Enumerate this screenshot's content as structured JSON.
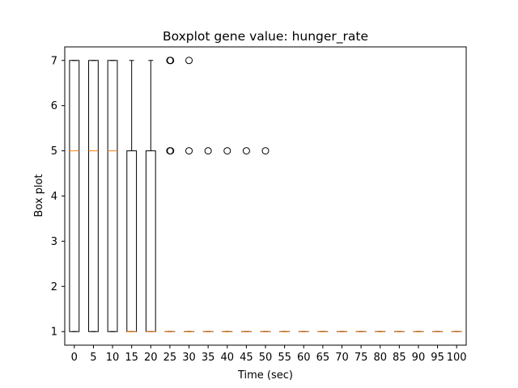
{
  "chart_data": {
    "type": "boxplot",
    "title": "Boxplot gene value: hunger_rate",
    "xlabel": "Time (sec)",
    "ylabel": "Box plot",
    "ylim": [
      0.7,
      7.3
    ],
    "yticks": [
      1,
      2,
      3,
      4,
      5,
      6,
      7
    ],
    "grid": false,
    "colors": {
      "box": "#000000",
      "median": "#ff7f0e",
      "whisker": "#000000",
      "flier": "#000000"
    },
    "boxes": [
      {
        "x": "0",
        "low": 1,
        "q1": 1,
        "median": 5,
        "q3": 7,
        "high": 7,
        "fliers": []
      },
      {
        "x": "5",
        "low": 1,
        "q1": 1,
        "median": 5,
        "q3": 7,
        "high": 7,
        "fliers": []
      },
      {
        "x": "10",
        "low": 1,
        "q1": 1,
        "median": 5,
        "q3": 7,
        "high": 7,
        "fliers": []
      },
      {
        "x": "15",
        "low": 1,
        "q1": 1,
        "median": 1,
        "q3": 5,
        "high": 7,
        "fliers": []
      },
      {
        "x": "20",
        "low": 1,
        "q1": 1,
        "median": 1,
        "q3": 5,
        "high": 7,
        "fliers": []
      },
      {
        "x": "25",
        "low": 1,
        "q1": 1,
        "median": 1,
        "q3": 1,
        "high": 1,
        "fliers": [
          5,
          7
        ]
      },
      {
        "x": "30",
        "low": 1,
        "q1": 1,
        "median": 1,
        "q3": 1,
        "high": 1,
        "fliers": [
          5,
          7
        ]
      },
      {
        "x": "35",
        "low": 1,
        "q1": 1,
        "median": 1,
        "q3": 1,
        "high": 1,
        "fliers": [
          5
        ]
      },
      {
        "x": "40",
        "low": 1,
        "q1": 1,
        "median": 1,
        "q3": 1,
        "high": 1,
        "fliers": [
          5
        ]
      },
      {
        "x": "45",
        "low": 1,
        "q1": 1,
        "median": 1,
        "q3": 1,
        "high": 1,
        "fliers": [
          5
        ]
      },
      {
        "x": "50",
        "low": 1,
        "q1": 1,
        "median": 1,
        "q3": 1,
        "high": 1,
        "fliers": [
          5
        ]
      },
      {
        "x": "55",
        "low": 1,
        "q1": 1,
        "median": 1,
        "q3": 1,
        "high": 1,
        "fliers": []
      },
      {
        "x": "60",
        "low": 1,
        "q1": 1,
        "median": 1,
        "q3": 1,
        "high": 1,
        "fliers": []
      },
      {
        "x": "65",
        "low": 1,
        "q1": 1,
        "median": 1,
        "q3": 1,
        "high": 1,
        "fliers": []
      },
      {
        "x": "70",
        "low": 1,
        "q1": 1,
        "median": 1,
        "q3": 1,
        "high": 1,
        "fliers": []
      },
      {
        "x": "75",
        "low": 1,
        "q1": 1,
        "median": 1,
        "q3": 1,
        "high": 1,
        "fliers": []
      },
      {
        "x": "80",
        "low": 1,
        "q1": 1,
        "median": 1,
        "q3": 1,
        "high": 1,
        "fliers": []
      },
      {
        "x": "85",
        "low": 1,
        "q1": 1,
        "median": 1,
        "q3": 1,
        "high": 1,
        "fliers": []
      },
      {
        "x": "90",
        "low": 1,
        "q1": 1,
        "median": 1,
        "q3": 1,
        "high": 1,
        "fliers": []
      },
      {
        "x": "95",
        "low": 1,
        "q1": 1,
        "median": 1,
        "q3": 1,
        "high": 1,
        "fliers": []
      },
      {
        "x": "100",
        "low": 1,
        "q1": 1,
        "median": 1,
        "q3": 1,
        "high": 1,
        "fliers": []
      }
    ]
  }
}
